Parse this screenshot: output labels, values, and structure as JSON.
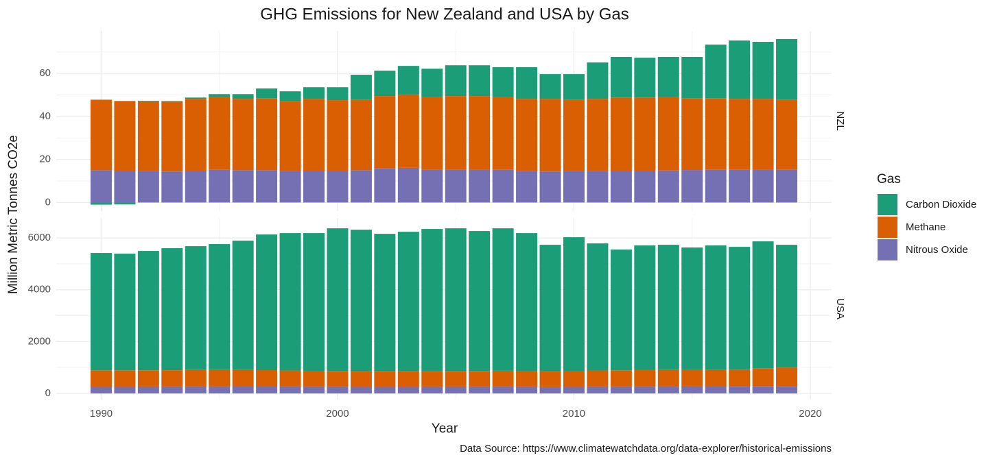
{
  "chart_data": {
    "type": "bar",
    "stacked": true,
    "grid": true,
    "title": "GHG Emissions for New Zealand and USA by Gas",
    "x_label": "Year",
    "y_label": "Million Metric Tonnes CO2e",
    "caption": "Data Source: https://www.climatewatchdata.org/data-explorer/historical-emissions",
    "legend_title": "Gas",
    "x": [
      1990,
      1991,
      1992,
      1993,
      1994,
      1995,
      1996,
      1997,
      1998,
      1999,
      2000,
      2001,
      2002,
      2003,
      2004,
      2005,
      2006,
      2007,
      2008,
      2009,
      2010,
      2011,
      2012,
      2013,
      2014,
      2015,
      2016,
      2017,
      2018,
      2019
    ],
    "xlim": [
      1988.1,
      2020.9
    ],
    "xticks": [
      1990,
      2000,
      2010,
      2020
    ],
    "series": [
      {
        "name": "Carbon Dioxide",
        "color": "#1b9e77"
      },
      {
        "name": "Methane",
        "color": "#d95f02"
      },
      {
        "name": "Nitrous Oxide",
        "color": "#7570b3"
      }
    ],
    "panels": [
      {
        "label": "NZL",
        "ylim": [
          -4,
          79.8
        ],
        "yticks": [
          0,
          20,
          40,
          60
        ],
        "values": [
          [
            -1,
            -0.9,
            0.4,
            0.3,
            0.6,
            1.2,
            2.2,
            4.5,
            4.5,
            5.4,
            6,
            11.5,
            11.8,
            13.4,
            13,
            14.3,
            14.3,
            13.7,
            14.7,
            11.5,
            11.8,
            16.9,
            18.9,
            18.5,
            18.5,
            19.2,
            24.9,
            27.1,
            26.5,
            28.1
          ],
          [
            32.8,
            32.4,
            32.4,
            32.5,
            33.4,
            34,
            33.2,
            33.5,
            32.7,
            33.4,
            32.8,
            32.9,
            33.7,
            34,
            33.8,
            34.1,
            34.2,
            34,
            33.6,
            33.8,
            33.4,
            33.6,
            34,
            34,
            34.3,
            33.4,
            33.3,
            33,
            32.9,
            32.7
          ],
          [
            15,
            14.8,
            14.5,
            14.4,
            14.8,
            15.2,
            15,
            15,
            14.5,
            14.8,
            14.8,
            15,
            15.8,
            16.1,
            15.4,
            15.4,
            15.3,
            15.2,
            14.6,
            14.4,
            14.5,
            14.6,
            14.8,
            14.8,
            14.9,
            15.1,
            15.2,
            15.2,
            15.3,
            15.2
          ]
        ]
      },
      {
        "label": "USA",
        "ylim": [
          -240,
          6770
        ],
        "yticks": [
          0,
          2000,
          4000,
          6000
        ],
        "values": [
          [
            4529,
            4503,
            4606,
            4709,
            4780,
            4860,
            4988,
            5236,
            5303,
            5316,
            5506,
            5463,
            5309,
            5389,
            5497,
            5519,
            5400,
            5498,
            5316,
            4881,
            5157,
            4904,
            4661,
            4812,
            4816,
            4705,
            4788,
            4727,
            4900,
            4736
          ],
          [
            640,
            640,
            640,
            640,
            645,
            645,
            645,
            635,
            625,
            615,
            610,
            605,
            600,
            600,
            595,
            600,
            610,
            615,
            615,
            610,
            620,
            630,
            635,
            640,
            660,
            665,
            660,
            665,
            700,
            735
          ],
          [
            250,
            250,
            252,
            255,
            258,
            258,
            262,
            262,
            258,
            255,
            255,
            250,
            250,
            250,
            252,
            252,
            255,
            258,
            255,
            245,
            250,
            255,
            255,
            258,
            260,
            260,
            262,
            265,
            268,
            265
          ]
        ]
      }
    ]
  }
}
